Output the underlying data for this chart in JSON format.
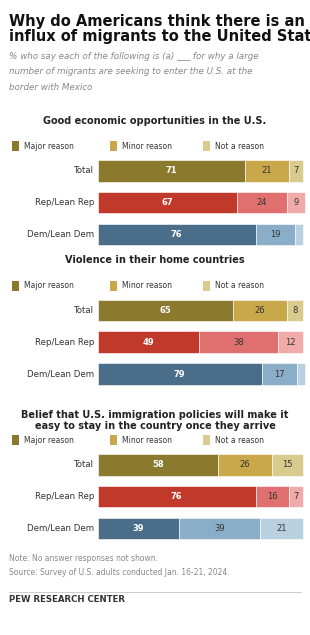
{
  "title_line1": "Why do Americans think there is an",
  "title_line2": "influx of migrants to the United States?",
  "subtitle_lines": [
    "% who say each of the following is (a) ___ for why a large",
    "number of migrants are seeking to enter the U.S. at the",
    "border with Mexico"
  ],
  "sections": [
    {
      "title": "Good economic opportunities in the U.S.",
      "rows": [
        {
          "label": "Total",
          "values": [
            71,
            21,
            7
          ]
        },
        {
          "label": "Rep/Lean Rep",
          "values": [
            67,
            24,
            9
          ]
        },
        {
          "label": "Dem/Lean Dem",
          "values": [
            76,
            19,
            4
          ]
        }
      ],
      "colors_total": [
        "#8B7A2E",
        "#C8A84B",
        "#D9CA8E"
      ],
      "colors_rep": [
        "#C0392B",
        "#E07070",
        "#F0AAAA"
      ],
      "colors_dem": [
        "#4A6E8A",
        "#8AAEC8",
        "#B8D0E0"
      ]
    },
    {
      "title": "Violence in their home countries",
      "rows": [
        {
          "label": "Total",
          "values": [
            65,
            26,
            8
          ]
        },
        {
          "label": "Rep/Lean Rep",
          "values": [
            49,
            38,
            12
          ]
        },
        {
          "label": "Dem/Lean Dem",
          "values": [
            79,
            17,
            4
          ]
        }
      ],
      "colors_total": [
        "#8B7A2E",
        "#C8A84B",
        "#D9CA8E"
      ],
      "colors_rep": [
        "#C0392B",
        "#E07070",
        "#F0AAAA"
      ],
      "colors_dem": [
        "#4A6E8A",
        "#8AAEC8",
        "#B8D0E0"
      ]
    },
    {
      "title": "Belief that U.S. immigration policies will make it\neasy to stay in the country once they arrive",
      "rows": [
        {
          "label": "Total",
          "values": [
            58,
            26,
            15
          ]
        },
        {
          "label": "Rep/Lean Rep",
          "values": [
            76,
            16,
            7
          ]
        },
        {
          "label": "Dem/Lean Dem",
          "values": [
            39,
            39,
            21
          ]
        }
      ],
      "colors_total": [
        "#8B7A2E",
        "#C8A84B",
        "#D9CA8E"
      ],
      "colors_rep": [
        "#C0392B",
        "#E07070",
        "#F0AAAA"
      ],
      "colors_dem": [
        "#4A6E8A",
        "#8AAEC8",
        "#B8D0E0"
      ]
    }
  ],
  "legend_labels": [
    "Major reason",
    "Minor reason",
    "Not a reason"
  ],
  "legend_colors": [
    "#8B7A2E",
    "#C8A84B",
    "#D9CA8E"
  ],
  "note_lines": [
    "Note: No answer responses not shown.",
    "Source: Survey of U.S. adults conducted Jan. 16-21, 2024."
  ],
  "footer": "PEW RESEARCH CENTER",
  "bg_color": "#FFFFFF"
}
